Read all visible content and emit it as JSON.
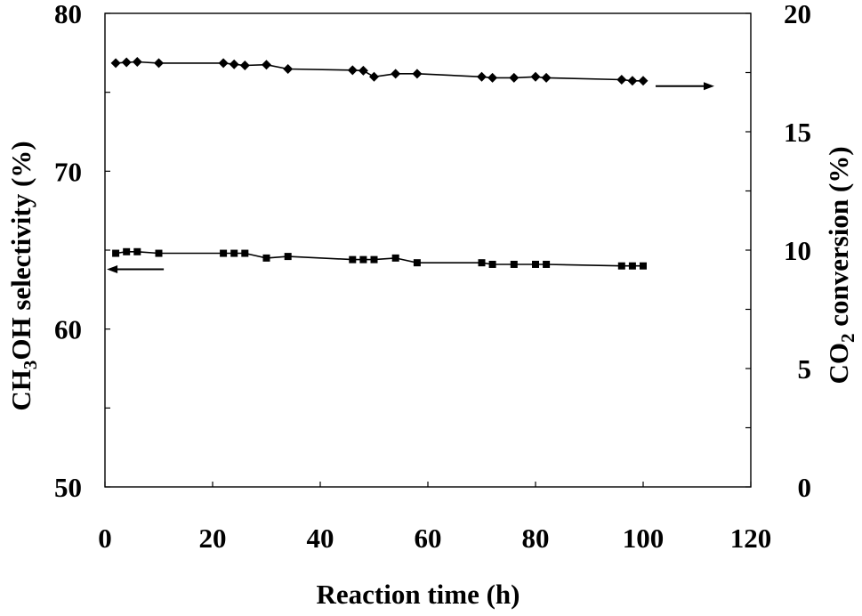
{
  "chart_data": {
    "type": "line",
    "xlabel": "Reaction time (h)",
    "ylabel_left": {
      "prefix": "CH",
      "sub1": "3",
      "middle": "OH selectivity (%)"
    },
    "ylabel_right": {
      "prefix": "CO",
      "sub1": "2",
      "suffix": " conversion (%)"
    },
    "xlim": [
      0,
      120
    ],
    "ylim_left": [
      50,
      80
    ],
    "ylim_right": [
      0,
      20
    ],
    "x_ticks": [
      0,
      20,
      40,
      60,
      80,
      100,
      120
    ],
    "y_left_ticks": [
      50,
      60,
      70,
      80
    ],
    "y_right_ticks": [
      0,
      5,
      10,
      15,
      20
    ],
    "grid": false,
    "series": [
      {
        "axis": "right",
        "marker": "diamond",
        "arrow_direction": "right",
        "points": [
          [
            2,
            17.9
          ],
          [
            4,
            17.93
          ],
          [
            6,
            17.95
          ],
          [
            10,
            17.9
          ],
          [
            22,
            17.9
          ],
          [
            24,
            17.85
          ],
          [
            26,
            17.8
          ],
          [
            30,
            17.83
          ],
          [
            34,
            17.65
          ],
          [
            46,
            17.6
          ],
          [
            48,
            17.58
          ],
          [
            50,
            17.32
          ],
          [
            54,
            17.45
          ],
          [
            58,
            17.45
          ],
          [
            70,
            17.32
          ],
          [
            72,
            17.28
          ],
          [
            76,
            17.28
          ],
          [
            80,
            17.32
          ],
          [
            82,
            17.28
          ],
          [
            96,
            17.2
          ],
          [
            98,
            17.15
          ],
          [
            100,
            17.15
          ]
        ]
      },
      {
        "axis": "left",
        "marker": "square",
        "arrow_direction": "left",
        "points": [
          [
            2,
            64.8
          ],
          [
            4,
            64.9
          ],
          [
            6,
            64.9
          ],
          [
            10,
            64.8
          ],
          [
            22,
            64.8
          ],
          [
            24,
            64.8
          ],
          [
            26,
            64.8
          ],
          [
            30,
            64.5
          ],
          [
            34,
            64.6
          ],
          [
            46,
            64.4
          ],
          [
            48,
            64.4
          ],
          [
            50,
            64.4
          ],
          [
            54,
            64.5
          ],
          [
            58,
            64.2
          ],
          [
            70,
            64.2
          ],
          [
            72,
            64.1
          ],
          [
            76,
            64.1
          ],
          [
            80,
            64.1
          ],
          [
            82,
            64.1
          ],
          [
            96,
            64.0
          ],
          [
            98,
            64.0
          ],
          [
            100,
            64.0
          ]
        ]
      }
    ]
  }
}
